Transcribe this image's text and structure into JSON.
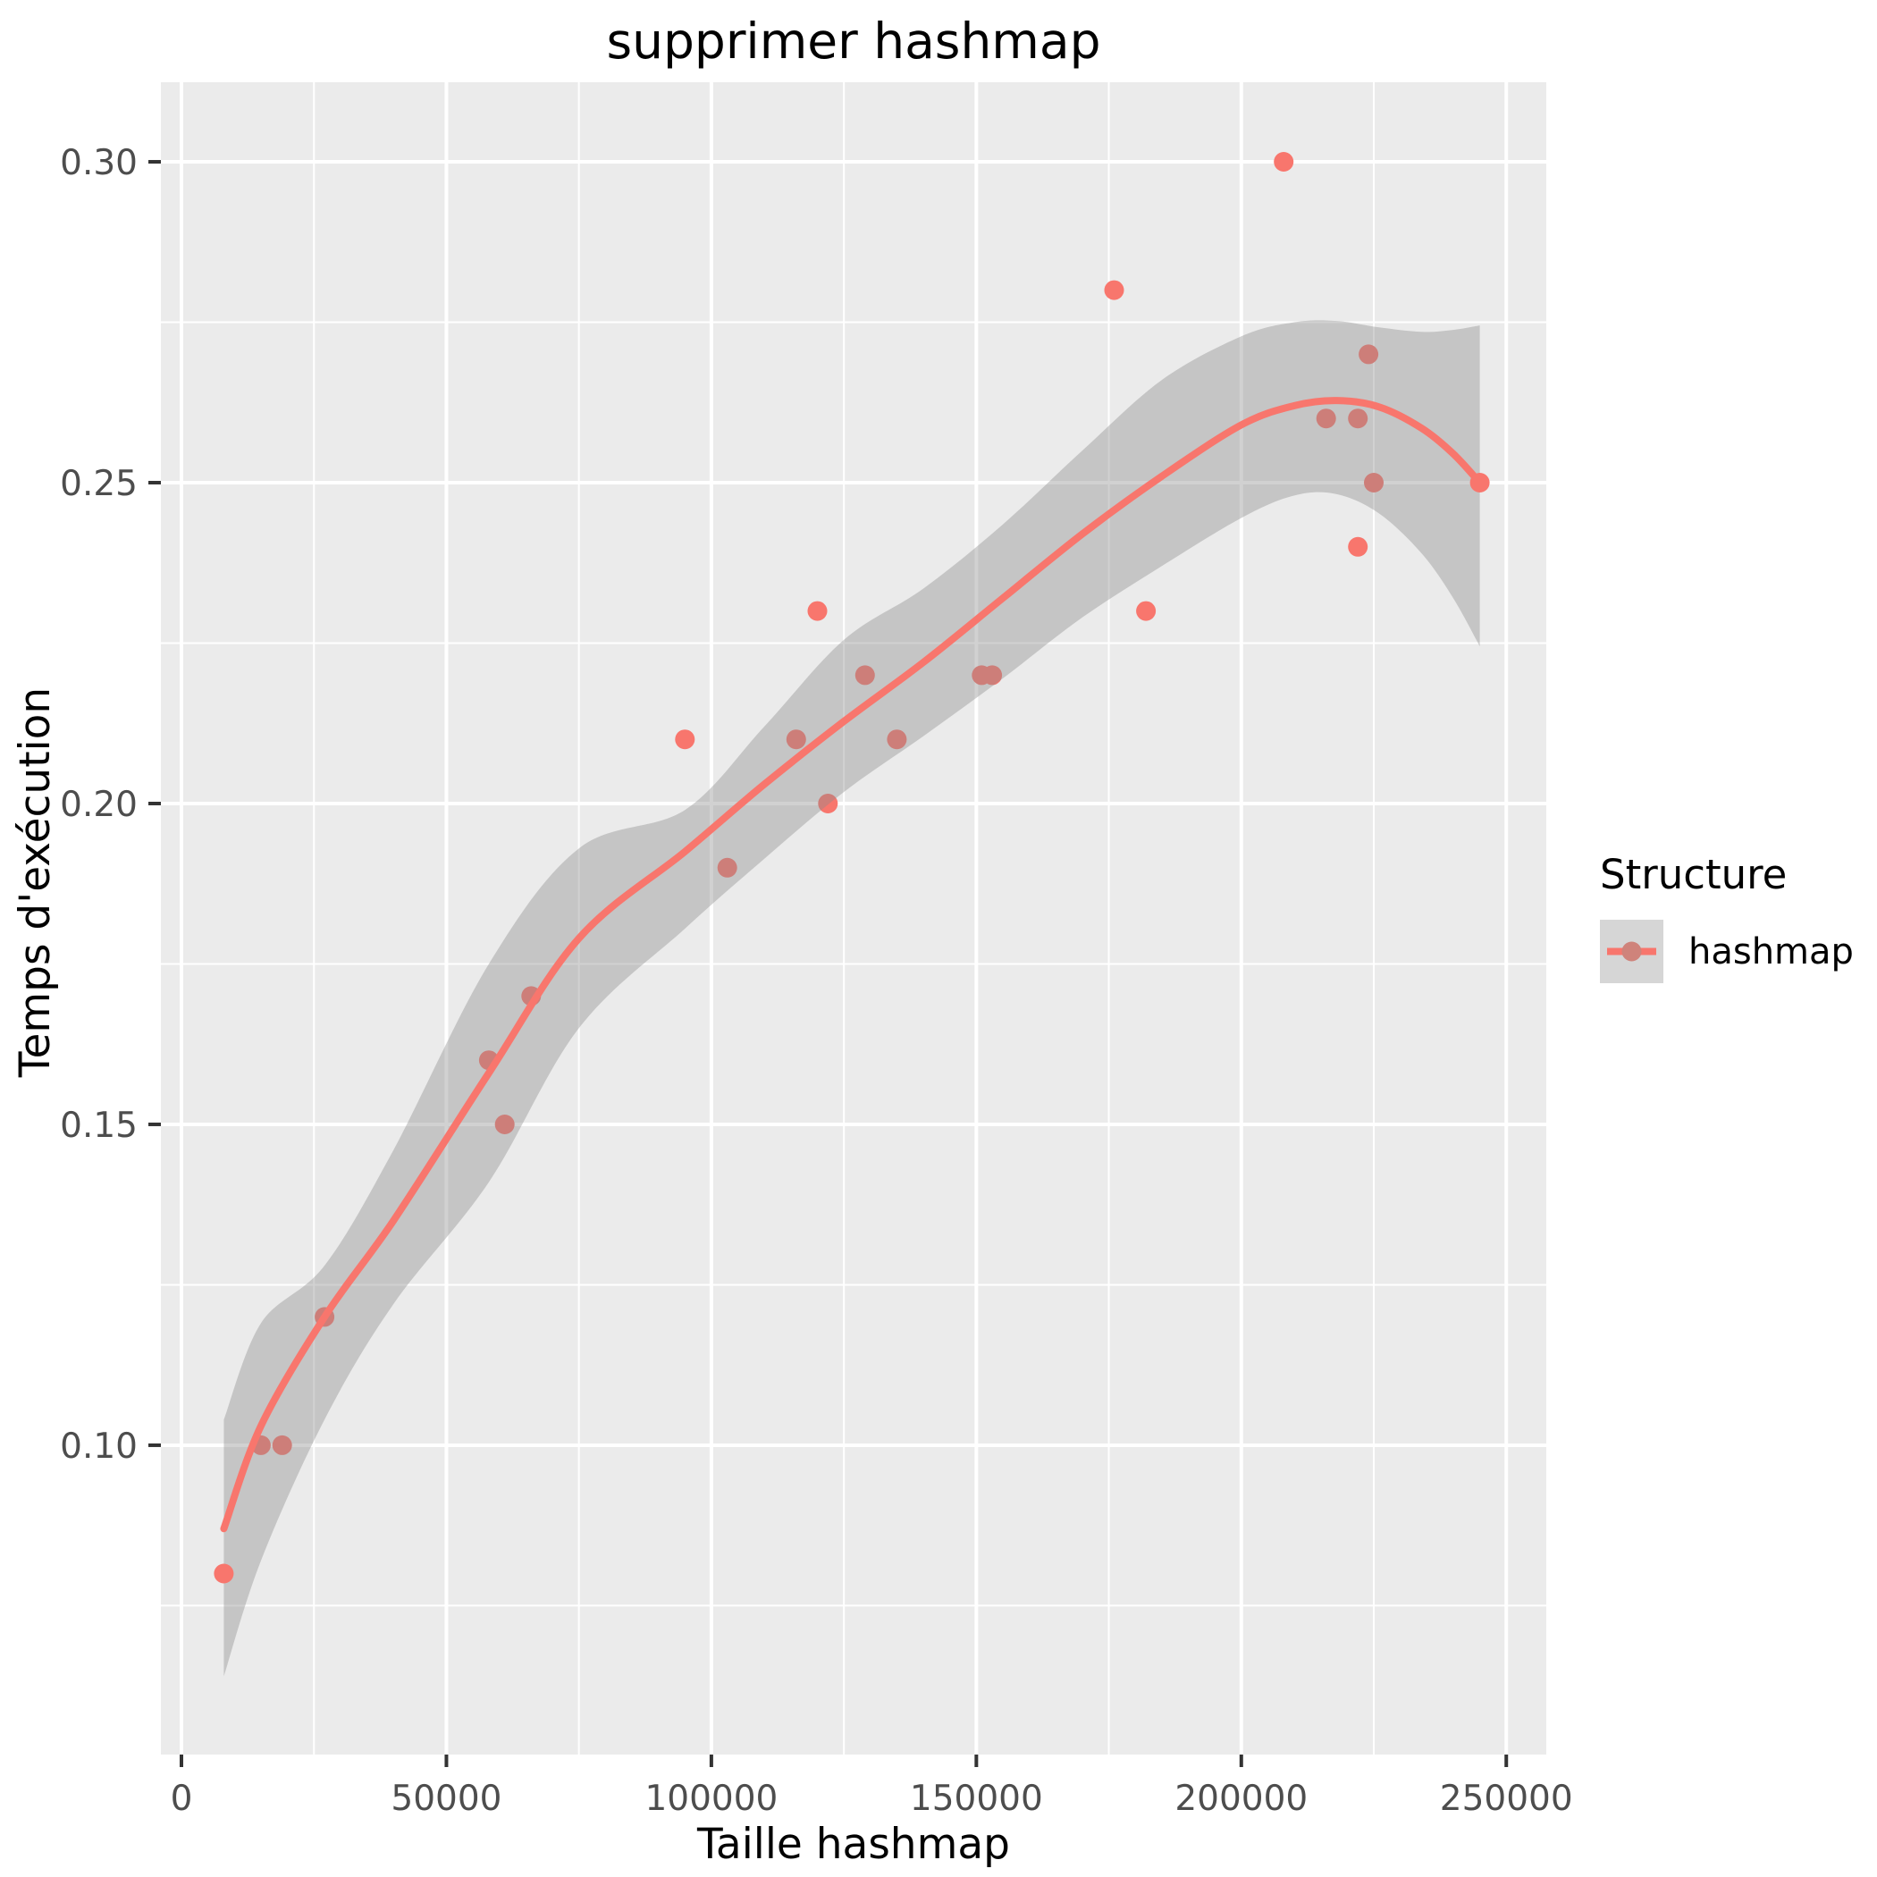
{
  "title": "supprimer hashmap",
  "axes": {
    "x": {
      "label": "Taille hashmap",
      "ticks": [
        0,
        50000,
        100000,
        150000,
        200000,
        250000
      ],
      "tick_labels": [
        "0",
        "50000",
        "100000",
        "150000",
        "200000",
        "250000"
      ],
      "minor_ticks": [
        25000,
        75000,
        125000,
        175000,
        225000
      ]
    },
    "y": {
      "label": "Temps d'exécution",
      "ticks": [
        0.1,
        0.15,
        0.2,
        0.25,
        0.3
      ],
      "tick_labels": [
        "0.10",
        "0.15",
        "0.20",
        "0.25",
        "0.30"
      ],
      "minor_ticks": [
        0.075,
        0.125,
        0.175,
        0.225,
        0.275
      ]
    }
  },
  "legend": {
    "title": "Structure",
    "items": [
      {
        "label": "hashmap",
        "color": "#F8766D",
        "key_dot_color": "#CF837B",
        "key_bg": "#D6D6D6"
      }
    ]
  },
  "chart_data": {
    "type": "scatter",
    "title": "supprimer hashmap",
    "xlabel": "Taille hashmap",
    "ylabel": "Temps d'exécution",
    "xlim": [
      -3880,
      257550
    ],
    "ylim": [
      0.0518,
      0.3124
    ],
    "grid": true,
    "legend_position": "right",
    "series": [
      {
        "name": "hashmap",
        "color": "#F8766D",
        "points": [
          [
            8000,
            0.08
          ],
          [
            15000,
            0.1
          ],
          [
            19000,
            0.1
          ],
          [
            27000,
            0.12
          ],
          [
            58000,
            0.16
          ],
          [
            61000,
            0.15
          ],
          [
            66000,
            0.17
          ],
          [
            95000,
            0.21
          ],
          [
            103000,
            0.19
          ],
          [
            116000,
            0.21
          ],
          [
            120000,
            0.23
          ],
          [
            122000,
            0.2
          ],
          [
            129000,
            0.22
          ],
          [
            135000,
            0.21
          ],
          [
            151000,
            0.22
          ],
          [
            153000,
            0.22
          ],
          [
            176000,
            0.28
          ],
          [
            182000,
            0.23
          ],
          [
            208000,
            0.3
          ],
          [
            216000,
            0.26
          ],
          [
            222000,
            0.24
          ],
          [
            222000,
            0.26
          ],
          [
            224000,
            0.27
          ],
          [
            225000,
            0.25
          ],
          [
            245000,
            0.25
          ]
        ],
        "points_drawn_above_ribbon": [
          0,
          24
        ]
      }
    ],
    "smooth_line": {
      "name": "loess fit",
      "color": "#F8766D",
      "x": [
        8000,
        15000,
        27000,
        40000,
        58000,
        75000,
        95000,
        110000,
        125000,
        140000,
        155000,
        170000,
        185000,
        200000,
        210000,
        218000,
        226000,
        234000,
        240000,
        245000
      ],
      "y": [
        0.087,
        0.103,
        0.12,
        0.135,
        0.158,
        0.179,
        0.1925,
        0.203,
        0.2128,
        0.222,
        0.232,
        0.242,
        0.251,
        0.259,
        0.262,
        0.2628,
        0.2618,
        0.2585,
        0.2545,
        0.25
      ]
    },
    "ribbon": {
      "name": "confidence band",
      "fill": "rgba(140,140,140,0.40)",
      "x": [
        8000,
        15000,
        27000,
        40000,
        58000,
        75000,
        95000,
        110000,
        125000,
        140000,
        155000,
        170000,
        185000,
        200000,
        210000,
        218000,
        226000,
        234000,
        240000,
        245000
      ],
      "upper": [
        0.104,
        0.119,
        0.128,
        0.146,
        0.175,
        0.193,
        0.199,
        0.212,
        0.2255,
        0.2335,
        0.2435,
        0.255,
        0.266,
        0.2728,
        0.275,
        0.2752,
        0.2742,
        0.2735,
        0.2738,
        0.2745
      ],
      "lower": [
        0.064,
        0.082,
        0.104,
        0.122,
        0.141,
        0.165,
        0.1805,
        0.1914,
        0.2018,
        0.2105,
        0.2195,
        0.229,
        0.237,
        0.2445,
        0.248,
        0.2482,
        0.2452,
        0.239,
        0.232,
        0.2245
      ]
    },
    "style": {
      "panel_bg": "#EBEBEB",
      "grid_color": "#FFFFFF",
      "point_color": "#F8766D",
      "point_radius": 11,
      "line_color": "#F8766D",
      "line_width": 8,
      "tick_color": "#333333",
      "tick_label_color": "#4D4D4D",
      "tick_label_size": 39
    }
  }
}
